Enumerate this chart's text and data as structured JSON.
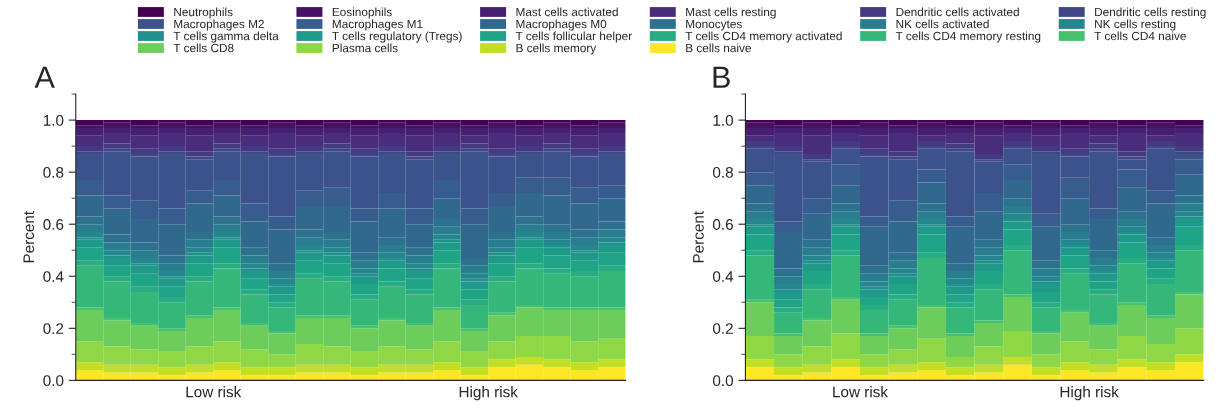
{
  "chart_data": [
    {
      "type": "bar",
      "title": "A",
      "ylabel": "Percent",
      "stacked": true,
      "legend": "top",
      "categories": [
        null,
        null,
        null,
        null,
        null,
        null,
        null,
        null,
        null,
        null,
        null,
        null,
        null,
        null,
        null,
        null,
        null,
        null,
        null,
        null
      ],
      "annotations": [
        "Low risk",
        "High risk"
      ],
      "ylim": [
        0,
        1.1
      ],
      "yticks": [
        {
          "value": 0,
          "label": "0.0"
        },
        {
          "value": 0.1,
          "label": null
        },
        {
          "value": 0.2,
          "label": "0.2"
        },
        {
          "value": 0.3,
          "label": null
        },
        {
          "value": 0.4,
          "label": "0.4"
        },
        {
          "value": 0.5,
          "label": null
        },
        {
          "value": 0.6,
          "label": "0.6"
        },
        {
          "value": 0.7,
          "label": null
        },
        {
          "value": 0.8,
          "label": "0.8"
        },
        {
          "value": 0.9,
          "label": null
        },
        {
          "value": 1.0,
          "label": "1.0"
        },
        {
          "value": 1.1,
          "label": null
        }
      ],
      "series": [
        {
          "name": "B cells naive",
          "color": "#fde725",
          "values": [
            0.04,
            0.03,
            0.03,
            0.02,
            0.03,
            0.04,
            0.02,
            0.02,
            0.03,
            0.03,
            0.02,
            0.03,
            0.03,
            0.04,
            0.02,
            0.05,
            0.06,
            0.05,
            0.04,
            0.05
          ]
        },
        {
          "name": "B cells memory",
          "color": "#c2df23",
          "values": [
            0.03,
            0.03,
            0.03,
            0.03,
            0.03,
            0.03,
            0.03,
            0.03,
            0.03,
            0.03,
            0.03,
            0.03,
            0.03,
            0.03,
            0.03,
            0.03,
            0.03,
            0.03,
            0.03,
            0.03
          ]
        },
        {
          "name": "Plasma cells",
          "color": "#8fd744",
          "values": [
            0.08,
            0.07,
            0.06,
            0.06,
            0.07,
            0.08,
            0.07,
            0.05,
            0.08,
            0.07,
            0.06,
            0.07,
            0.06,
            0.08,
            0.06,
            0.07,
            0.08,
            0.09,
            0.08,
            0.08
          ]
        },
        {
          "name": "T cells CD8",
          "color": "#6ccd5a",
          "values": [
            0.12,
            0.1,
            0.09,
            0.08,
            0.11,
            0.12,
            0.09,
            0.08,
            0.1,
            0.11,
            0.09,
            0.1,
            0.09,
            0.12,
            0.08,
            0.1,
            0.11,
            0.1,
            0.12,
            0.11
          ]
        },
        {
          "name": "T cells CD4 naive",
          "color": "#47c16e",
          "values": [
            0.01,
            0.01,
            0.01,
            0.01,
            0.01,
            0.01,
            0.01,
            0.01,
            0.01,
            0.01,
            0.01,
            0.01,
            0.01,
            0.01,
            0.01,
            0.01,
            0.01,
            0.01,
            0.01,
            0.01
          ]
        },
        {
          "name": "T cells CD4 memory resting",
          "color": "#35b779",
          "values": [
            0.16,
            0.14,
            0.12,
            0.1,
            0.13,
            0.15,
            0.11,
            0.09,
            0.14,
            0.13,
            0.1,
            0.12,
            0.11,
            0.15,
            0.09,
            0.12,
            0.14,
            0.13,
            0.12,
            0.14
          ]
        },
        {
          "name": "T cells CD4 memory activated",
          "color": "#27ad81",
          "values": [
            0.02,
            0.02,
            0.02,
            0.02,
            0.02,
            0.02,
            0.02,
            0.02,
            0.02,
            0.02,
            0.02,
            0.02,
            0.02,
            0.02,
            0.02,
            0.02,
            0.02,
            0.02,
            0.02,
            0.02
          ]
        },
        {
          "name": "T cells follicular helper",
          "color": "#20a486",
          "values": [
            0.05,
            0.04,
            0.05,
            0.04,
            0.05,
            0.06,
            0.04,
            0.03,
            0.05,
            0.05,
            0.04,
            0.05,
            0.04,
            0.05,
            0.04,
            0.05,
            0.06,
            0.05,
            0.04,
            0.05
          ]
        },
        {
          "name": "T cells regulatory (Tregs)",
          "color": "#1f9a8a",
          "values": [
            0.03,
            0.03,
            0.03,
            0.03,
            0.03,
            0.03,
            0.03,
            0.03,
            0.03,
            0.03,
            0.03,
            0.03,
            0.03,
            0.03,
            0.03,
            0.03,
            0.03,
            0.03,
            0.03,
            0.03
          ]
        },
        {
          "name": "T cells gamma delta",
          "color": "#21918c",
          "values": [
            0.01,
            0.01,
            0.01,
            0.01,
            0.01,
            0.01,
            0.01,
            0.01,
            0.01,
            0.01,
            0.01,
            0.01,
            0.01,
            0.01,
            0.01,
            0.01,
            0.01,
            0.01,
            0.01,
            0.01
          ]
        },
        {
          "name": "NK cells resting",
          "color": "#24868e",
          "values": [
            0.02,
            0.02,
            0.02,
            0.02,
            0.02,
            0.02,
            0.02,
            0.02,
            0.02,
            0.02,
            0.02,
            0.02,
            0.02,
            0.02,
            0.02,
            0.02,
            0.02,
            0.02,
            0.02,
            0.02
          ]
        },
        {
          "name": "NK cells activated",
          "color": "#287d8e",
          "values": [
            0.03,
            0.03,
            0.03,
            0.03,
            0.03,
            0.03,
            0.03,
            0.03,
            0.03,
            0.03,
            0.03,
            0.03,
            0.03,
            0.03,
            0.03,
            0.03,
            0.03,
            0.03,
            0.03,
            0.03
          ]
        },
        {
          "name": "Monocytes",
          "color": "#2c728e",
          "values": [
            0.03,
            0.03,
            0.03,
            0.03,
            0.03,
            0.03,
            0.03,
            0.03,
            0.03,
            0.03,
            0.03,
            0.03,
            0.03,
            0.03,
            0.03,
            0.03,
            0.03,
            0.03,
            0.03,
            0.03
          ]
        },
        {
          "name": "Macrophages M0",
          "color": "#31688e",
          "values": [
            0.08,
            0.1,
            0.09,
            0.12,
            0.11,
            0.08,
            0.1,
            0.13,
            0.09,
            0.1,
            0.12,
            0.11,
            0.09,
            0.08,
            0.13,
            0.1,
            0.09,
            0.11,
            0.1,
            0.09
          ]
        },
        {
          "name": "Macrophages M1",
          "color": "#365d8d",
          "values": [
            0.06,
            0.05,
            0.07,
            0.06,
            0.05,
            0.06,
            0.07,
            0.05,
            0.06,
            0.07,
            0.05,
            0.06,
            0.06,
            0.07,
            0.06,
            0.05,
            0.06,
            0.07,
            0.06,
            0.05
          ]
        },
        {
          "name": "Macrophages M2",
          "color": "#3b528b",
          "values": [
            0.1,
            0.17,
            0.17,
            0.21,
            0.12,
            0.11,
            0.19,
            0.23,
            0.14,
            0.14,
            0.2,
            0.15,
            0.19,
            0.1,
            0.22,
            0.14,
            0.09,
            0.1,
            0.12,
            0.12
          ]
        },
        {
          "name": "Dendritic cells resting",
          "color": "#404688",
          "values": [
            0.01,
            0.01,
            0.01,
            0.01,
            0.01,
            0.01,
            0.01,
            0.01,
            0.01,
            0.01,
            0.01,
            0.01,
            0.01,
            0.01,
            0.01,
            0.01,
            0.01,
            0.01,
            0.01,
            0.01
          ]
        },
        {
          "name": "Dendritic cells activated",
          "color": "#443a83",
          "values": [
            0.02,
            0.02,
            0.02,
            0.02,
            0.02,
            0.02,
            0.02,
            0.02,
            0.02,
            0.02,
            0.02,
            0.02,
            0.02,
            0.02,
            0.02,
            0.02,
            0.02,
            0.02,
            0.02,
            0.02
          ]
        },
        {
          "name": "Mast cells resting",
          "color": "#472d7b",
          "values": [
            0.04,
            0.04,
            0.05,
            0.05,
            0.06,
            0.04,
            0.04,
            0.06,
            0.04,
            0.04,
            0.05,
            0.05,
            0.06,
            0.05,
            0.03,
            0.06,
            0.04,
            0.04,
            0.05,
            0.05
          ]
        },
        {
          "name": "Mast cells activated",
          "color": "#481f70",
          "values": [
            0.03,
            0.02,
            0.03,
            0.02,
            0.03,
            0.02,
            0.03,
            0.02,
            0.03,
            0.02,
            0.03,
            0.02,
            0.03,
            0.02,
            0.03,
            0.02,
            0.03,
            0.02,
            0.03,
            0.02
          ]
        },
        {
          "name": "Eosinophils",
          "color": "#471164",
          "values": [
            0.01,
            0.02,
            0.01,
            0.02,
            0.01,
            0.02,
            0.01,
            0.02,
            0.01,
            0.02,
            0.01,
            0.02,
            0.01,
            0.02,
            0.01,
            0.02,
            0.01,
            0.02,
            0.01,
            0.02
          ]
        },
        {
          "name": "Neutrophils",
          "color": "#440154",
          "values": [
            0.02,
            0.01,
            0.02,
            0.01,
            0.02,
            0.01,
            0.02,
            0.01,
            0.02,
            0.01,
            0.02,
            0.01,
            0.02,
            0.01,
            0.02,
            0.01,
            0.02,
            0.01,
            0.02,
            0.01
          ]
        }
      ]
    },
    {
      "type": "bar",
      "title": "B",
      "ylabel": "Percent",
      "stacked": true,
      "categories": [
        null,
        null,
        null,
        null,
        null,
        null,
        null,
        null,
        null,
        null,
        null,
        null,
        null,
        null,
        null,
        null
      ],
      "annotations": [
        "Low risk",
        "High risk"
      ],
      "ylim": [
        0,
        1.1
      ],
      "yticks": [
        {
          "value": 0,
          "label": "0.0"
        },
        {
          "value": 0.1,
          "label": null
        },
        {
          "value": 0.2,
          "label": "0.2"
        },
        {
          "value": 0.3,
          "label": null
        },
        {
          "value": 0.4,
          "label": "0.4"
        },
        {
          "value": 0.5,
          "label": null
        },
        {
          "value": 0.6,
          "label": "0.6"
        },
        {
          "value": 0.7,
          "label": null
        },
        {
          "value": 0.8,
          "label": "0.8"
        },
        {
          "value": 0.9,
          "label": null
        },
        {
          "value": 1.0,
          "label": "1.0"
        },
        {
          "value": 1.1,
          "label": null
        }
      ],
      "series": [
        {
          "color": "#fde725",
          "values": [
            0.05,
            0.02,
            0.03,
            0.05,
            0.02,
            0.03,
            0.04,
            0.02,
            0.03,
            0.06,
            0.02,
            0.04,
            0.03,
            0.05,
            0.04,
            0.07
          ]
        },
        {
          "color": "#c2df23",
          "values": [
            0.03,
            0.03,
            0.03,
            0.03,
            0.03,
            0.03,
            0.03,
            0.03,
            0.03,
            0.03,
            0.03,
            0.03,
            0.03,
            0.03,
            0.03,
            0.03
          ]
        },
        {
          "color": "#8fd744",
          "values": [
            0.09,
            0.05,
            0.07,
            0.1,
            0.05,
            0.06,
            0.09,
            0.04,
            0.07,
            0.1,
            0.05,
            0.08,
            0.06,
            0.09,
            0.07,
            0.1
          ]
        },
        {
          "color": "#6ccd5a",
          "values": [
            0.13,
            0.07,
            0.1,
            0.13,
            0.07,
            0.08,
            0.12,
            0.08,
            0.09,
            0.13,
            0.08,
            0.11,
            0.09,
            0.12,
            0.1,
            0.13
          ]
        },
        {
          "color": "#47c16e",
          "values": [
            0.01,
            0.01,
            0.01,
            0.01,
            0.01,
            0.01,
            0.01,
            0.01,
            0.01,
            0.01,
            0.01,
            0.01,
            0.01,
            0.01,
            0.01,
            0.01
          ]
        },
        {
          "color": "#35b779",
          "values": [
            0.17,
            0.08,
            0.11,
            0.16,
            0.09,
            0.1,
            0.18,
            0.1,
            0.12,
            0.17,
            0.09,
            0.14,
            0.11,
            0.15,
            0.12,
            0.16
          ]
        },
        {
          "color": "#27ad81",
          "values": [
            0.02,
            0.02,
            0.02,
            0.02,
            0.02,
            0.02,
            0.02,
            0.02,
            0.02,
            0.02,
            0.02,
            0.02,
            0.02,
            0.02,
            0.02,
            0.02
          ]
        },
        {
          "color": "#20a486",
          "values": [
            0.06,
            0.03,
            0.05,
            0.06,
            0.03,
            0.04,
            0.07,
            0.03,
            0.05,
            0.06,
            0.04,
            0.05,
            0.03,
            0.06,
            0.04,
            0.07
          ]
        },
        {
          "color": "#1f9a8a",
          "values": [
            0.03,
            0.03,
            0.03,
            0.03,
            0.03,
            0.03,
            0.03,
            0.03,
            0.03,
            0.03,
            0.03,
            0.03,
            0.03,
            0.03,
            0.03,
            0.03
          ]
        },
        {
          "color": "#21918c",
          "values": [
            0.01,
            0.01,
            0.01,
            0.01,
            0.01,
            0.01,
            0.01,
            0.01,
            0.01,
            0.01,
            0.01,
            0.01,
            0.01,
            0.01,
            0.01,
            0.01
          ]
        },
        {
          "color": "#24868e",
          "values": [
            0.02,
            0.02,
            0.02,
            0.02,
            0.02,
            0.02,
            0.02,
            0.02,
            0.02,
            0.02,
            0.02,
            0.02,
            0.02,
            0.02,
            0.02,
            0.02
          ]
        },
        {
          "color": "#287d8e",
          "values": [
            0.03,
            0.03,
            0.03,
            0.03,
            0.03,
            0.03,
            0.03,
            0.03,
            0.03,
            0.03,
            0.03,
            0.03,
            0.03,
            0.03,
            0.03,
            0.03
          ]
        },
        {
          "color": "#2c728e",
          "values": [
            0.03,
            0.03,
            0.03,
            0.03,
            0.03,
            0.03,
            0.03,
            0.03,
            0.03,
            0.03,
            0.03,
            0.03,
            0.03,
            0.03,
            0.03,
            0.03
          ]
        },
        {
          "color": "#31688e",
          "values": [
            0.07,
            0.14,
            0.1,
            0.07,
            0.15,
            0.12,
            0.08,
            0.14,
            0.11,
            0.07,
            0.13,
            0.1,
            0.12,
            0.09,
            0.13,
            0.08
          ]
        },
        {
          "color": "#365d8d",
          "values": [
            0.05,
            0.04,
            0.06,
            0.08,
            0.04,
            0.08,
            0.05,
            0.04,
            0.07,
            0.06,
            0.05,
            0.08,
            0.04,
            0.07,
            0.05,
            0.06
          ]
        },
        {
          "color": "#3b528b",
          "values": [
            0.09,
            0.26,
            0.14,
            0.06,
            0.23,
            0.16,
            0.08,
            0.25,
            0.12,
            0.06,
            0.23,
            0.08,
            0.22,
            0.04,
            0.16,
            0.02
          ]
        },
        {
          "color": "#404688",
          "values": [
            0.01,
            0.01,
            0.01,
            0.01,
            0.01,
            0.01,
            0.01,
            0.01,
            0.01,
            0.01,
            0.01,
            0.01,
            0.01,
            0.01,
            0.01,
            0.01
          ]
        },
        {
          "color": "#443a83",
          "values": [
            0.02,
            0.02,
            0.02,
            0.02,
            0.02,
            0.02,
            0.02,
            0.02,
            0.02,
            0.02,
            0.02,
            0.02,
            0.02,
            0.02,
            0.02,
            0.02
          ]
        },
        {
          "color": "#472d7b",
          "values": [
            0.02,
            0.05,
            0.07,
            0.03,
            0.05,
            0.07,
            0.02,
            0.04,
            0.07,
            0.03,
            0.04,
            0.06,
            0.03,
            0.07,
            0.02,
            0.05
          ]
        },
        {
          "color": "#481f70",
          "values": [
            0.03,
            0.02,
            0.03,
            0.02,
            0.03,
            0.02,
            0.03,
            0.02,
            0.03,
            0.02,
            0.03,
            0.02,
            0.03,
            0.02,
            0.03,
            0.02
          ]
        },
        {
          "color": "#471164",
          "values": [
            0.02,
            0.01,
            0.02,
            0.01,
            0.02,
            0.01,
            0.02,
            0.01,
            0.02,
            0.01,
            0.02,
            0.01,
            0.02,
            0.01,
            0.02,
            0.01
          ]
        },
        {
          "color": "#440154",
          "values": [
            0.01,
            0.02,
            0.01,
            0.02,
            0.01,
            0.02,
            0.01,
            0.02,
            0.01,
            0.02,
            0.01,
            0.02,
            0.01,
            0.02,
            0.01,
            0.02
          ]
        }
      ]
    }
  ]
}
